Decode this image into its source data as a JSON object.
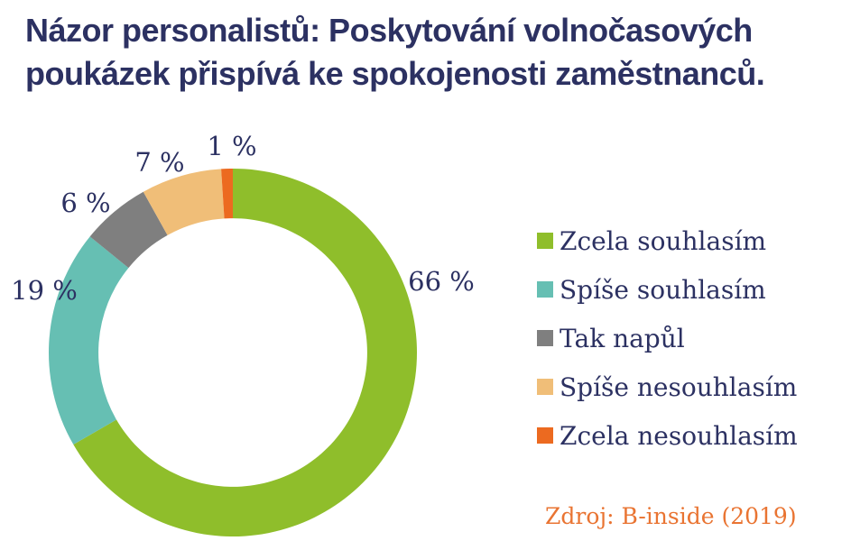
{
  "theme": {
    "background": "#FFFFFF",
    "text": "#2C3162",
    "source_color": "#E97432"
  },
  "title": {
    "line1": "Názor personalistů: Poskytování volnočasových",
    "line2": "poukázek přispívá ke spokojenosti zaměstnanců."
  },
  "source": {
    "text": "Zdroj: B-inside (2019)",
    "color": "#E97432"
  },
  "chart_data": {
    "type": "pie",
    "subtype": "donut",
    "title": "Názor personalistů: Poskytování volnočasových poukázek přispívá ke spokojenosti zaměstnanců.",
    "source": "Zdroj: B-inside (2019)",
    "units": "%",
    "direction": "clockwise",
    "start_angle_deg": 0,
    "inner_radius_ratio": 0.73,
    "legend_position": "right",
    "label_color": "#2C3162",
    "slices": [
      {
        "name": "Zcela souhlasím",
        "value": 66,
        "display": "66 %",
        "color": "#8FBE2B"
      },
      {
        "name": "Spíše souhlasím",
        "value": 19,
        "display": "19 %",
        "color": "#66BFB3"
      },
      {
        "name": "Tak napůl",
        "value": 6,
        "display": "6 %",
        "color": "#7F7F7F"
      },
      {
        "name": "Spíše nesouhlasím",
        "value": 7,
        "display": "7 %",
        "color": "#F0BE78"
      },
      {
        "name": "Zcela nesouhlasím",
        "value": 1,
        "display": "1 %",
        "color": "#EC6A20"
      }
    ]
  }
}
